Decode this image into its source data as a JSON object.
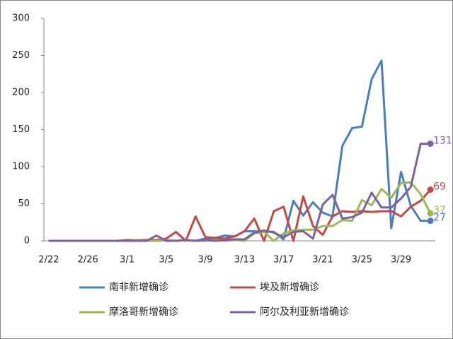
{
  "chart_data": {
    "type": "line",
    "categories": [
      "2/22",
      null,
      null,
      null,
      "2/26",
      null,
      null,
      null,
      "3/1",
      null,
      null,
      null,
      "3/5",
      null,
      null,
      null,
      "3/9",
      null,
      null,
      null,
      "3/13",
      null,
      null,
      null,
      "3/17",
      null,
      null,
      null,
      "3/21",
      null,
      null,
      null,
      "3/25",
      null,
      null,
      null,
      "3/29",
      null,
      null,
      null
    ],
    "series": [
      {
        "name": "南非新增确诊",
        "color": "#4a7ebb",
        "values": [
          0,
          0,
          0,
          0,
          0,
          0,
          0,
          0,
          0,
          0,
          0,
          0,
          1,
          0,
          1,
          0,
          3,
          4,
          7,
          6,
          13,
          13,
          13,
          12,
          2,
          54,
          34,
          52,
          38,
          33,
          128,
          152,
          154,
          218,
          243,
          17,
          93,
          47,
          27,
          27
        ]
      },
      {
        "name": "埃及新增确诊",
        "color": "#be4b48",
        "values": [
          0,
          0,
          0,
          0,
          0,
          0,
          0,
          0,
          1,
          1,
          1,
          1,
          3,
          12,
          0,
          33,
          5,
          4,
          3,
          6,
          13,
          30,
          0,
          40,
          46,
          0,
          60,
          20,
          8,
          33,
          40,
          39,
          40,
          39,
          40,
          40,
          33,
          46,
          54,
          69
        ]
      },
      {
        "name": "摩洛哥新增确诊",
        "color": "#98b954",
        "values": [
          0,
          0,
          0,
          0,
          0,
          0,
          0,
          0,
          0,
          1,
          0,
          0,
          1,
          0,
          1,
          0,
          0,
          1,
          0,
          1,
          0,
          10,
          12,
          0,
          10,
          14,
          15,
          15,
          20,
          20,
          28,
          27,
          55,
          48,
          70,
          58,
          78,
          79,
          63,
          37
        ]
      },
      {
        "name": "阿尔及利亚新增确诊",
        "color": "#7d60a0",
        "values": [
          0,
          0,
          0,
          0,
          0,
          0,
          0,
          0,
          0,
          0,
          0,
          7,
          0,
          0,
          1,
          0,
          1,
          0,
          1,
          2,
          2,
          11,
          14,
          11,
          5,
          12,
          13,
          3,
          49,
          62,
          30,
          32,
          38,
          65,
          45,
          45,
          57,
          73,
          131,
          131
        ]
      }
    ],
    "ylim": [
      0,
      300
    ],
    "yticks": [
      0,
      50,
      100,
      150,
      200,
      250,
      300
    ],
    "grid": false
  }
}
